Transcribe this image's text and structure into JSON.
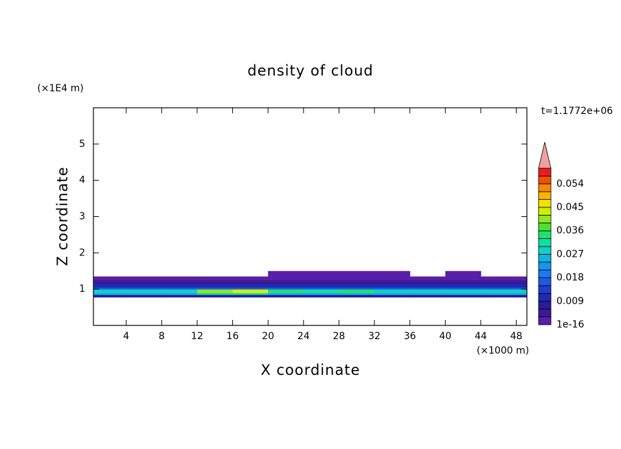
{
  "chart_data": {
    "type": "contour",
    "title": "density of cloud",
    "x_label": "X coordinate",
    "y_label": "Z coordinate",
    "x_unit": "(×1000 m)",
    "y_unit": "(×1E4 m)",
    "time_label": "t=1.1772e+06",
    "xlim": [
      0.3,
      49.2
    ],
    "ylim": [
      0,
      6
    ],
    "xticks": [
      4,
      8,
      12,
      16,
      20,
      24,
      28,
      32,
      36,
      40,
      44,
      48
    ],
    "yticks": [
      1,
      2,
      3,
      4,
      5
    ],
    "xbins": [
      0.3,
      4,
      8,
      12,
      16,
      20,
      24,
      28,
      32,
      36,
      40,
      44,
      48,
      49.2
    ],
    "ybins": [
      0.78,
      0.85,
      0.9,
      1.0,
      1.05,
      1.15,
      1.25,
      1.35,
      1.5
    ],
    "values": [
      [
        0.006,
        0.006,
        0.006,
        0.006,
        0.006,
        0.006,
        0.006,
        0.006,
        0.006,
        0.006,
        0.006,
        0.006,
        0.006
      ],
      [
        0.024,
        0.024,
        0.024,
        0.03,
        0.03,
        0.024,
        0.024,
        0.024,
        0.024,
        0.024,
        0.024,
        0.024,
        0.024
      ],
      [
        0.028,
        0.028,
        0.028,
        0.04,
        0.042,
        0.033,
        0.032,
        0.034,
        0.028,
        0.028,
        0.028,
        0.028,
        0.028
      ],
      [
        0.016,
        0.016,
        0.016,
        0.016,
        0.016,
        0.016,
        0.016,
        0.016,
        0.016,
        0.016,
        0.016,
        0.016,
        0.016
      ],
      [
        0.009,
        0.009,
        0.009,
        0.009,
        0.009,
        0.009,
        0.009,
        0.009,
        0.009,
        0.009,
        0.009,
        0.009,
        0.009
      ],
      [
        0.005,
        0.005,
        0.005,
        0.005,
        0.005,
        0.005,
        0.005,
        0.005,
        0.005,
        0.005,
        0.005,
        0.005,
        0.005
      ],
      [
        0.002,
        0.002,
        0.002,
        0.002,
        0.002,
        0.002,
        0.002,
        0.002,
        0.002,
        0.002,
        0.002,
        0.002,
        0.002
      ],
      [
        null,
        null,
        null,
        null,
        null,
        0.001,
        0.001,
        0.001,
        0.001,
        null,
        0.001,
        null,
        null
      ]
    ],
    "levels": [
      1e-16,
      0.003,
      0.006,
      0.009,
      0.012,
      0.015,
      0.018,
      0.021,
      0.024,
      0.027,
      0.03,
      0.033,
      0.036,
      0.039,
      0.042,
      0.045,
      0.048,
      0.051,
      0.054,
      0.057,
      0.06
    ],
    "colors": [
      "#5a1ea8",
      "#3c1a94",
      "#2a1a9e",
      "#1e2ab4",
      "#1f3ed0",
      "#1e5ae0",
      "#1a78f0",
      "#1696f0",
      "#10b4e0",
      "#10d0c8",
      "#10e0a0",
      "#20e070",
      "#50e030",
      "#90e820",
      "#d0f000",
      "#f0e000",
      "#f8b400",
      "#f88800",
      "#f05000",
      "#e81e1e"
    ],
    "over_color": "#f0a0a0",
    "cticks": [
      1e-16,
      0.009,
      0.018,
      0.027,
      0.036,
      0.045,
      0.054
    ]
  }
}
